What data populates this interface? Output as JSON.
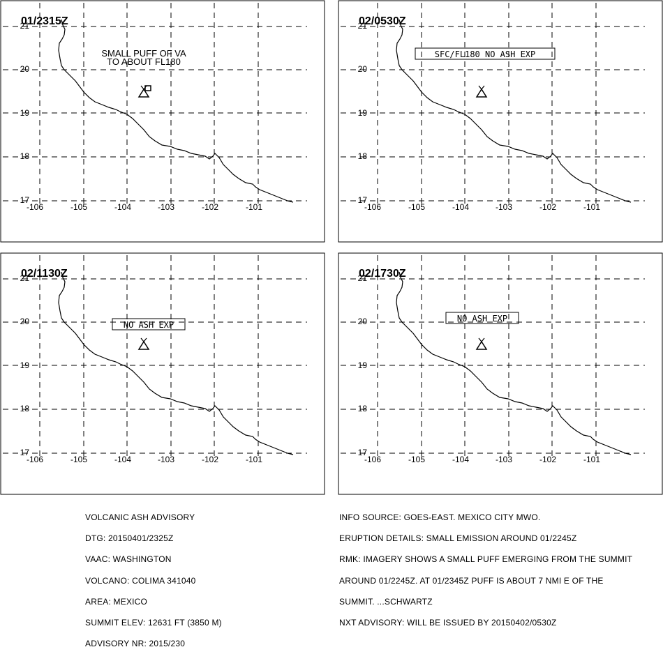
{
  "panels": [
    {
      "time_label": "01/2315Z",
      "text_note": [
        "SMALL PUFF OF VA",
        "TO ABOUT FL180"
      ],
      "boxed_label": "",
      "ash_area_marker": true
    },
    {
      "time_label": "02/0530Z",
      "text_note": [],
      "boxed_label": "SFC/FL180 NO ASH EXP",
      "ash_area_marker": false
    },
    {
      "time_label": "02/1130Z",
      "text_note": [],
      "boxed_label": "NO ASH EXP",
      "ash_area_marker": false
    },
    {
      "time_label": "02/1730Z",
      "text_note": [],
      "boxed_label": "NO ASH EXP",
      "ash_area_marker": false
    }
  ],
  "map": {
    "lon_labels": [
      "-106",
      "-105",
      "-104",
      "-103",
      "-102",
      "-101"
    ],
    "lat_labels": [
      "17",
      "18",
      "19",
      "20",
      "21"
    ],
    "volcano_icon": "volcano-triangle-icon",
    "grid_style": "dashed"
  },
  "advisory_left": [
    "VOLCANIC ASH ADVISORY",
    "DTG: 20150401/2325Z",
    "VAAC: WASHINGTON",
    "VOLCANO: COLIMA 341040",
    "AREA: MEXICO",
    "SUMMIT ELEV: 12631 FT (3850 M)",
    "ADVISORY NR: 2015/230"
  ],
  "advisory_right": [
    "INFO SOURCE: GOES-EAST. MEXICO CITY MWO.",
    "ERUPTION DETAILS: SMALL EMISSION AROUND 01/2245Z",
    "RMK: IMAGERY SHOWS A SMALL PUFF EMERGING FROM THE SUMMIT",
    "AROUND 01/2245Z. AT 01/2345Z PUFF IS ABOUT 7 NMI E OF THE",
    "SUMMIT. ...SCHWARTZ",
    "NXT ADVISORY: WILL BE ISSUED BY 20150402/0530Z"
  ]
}
